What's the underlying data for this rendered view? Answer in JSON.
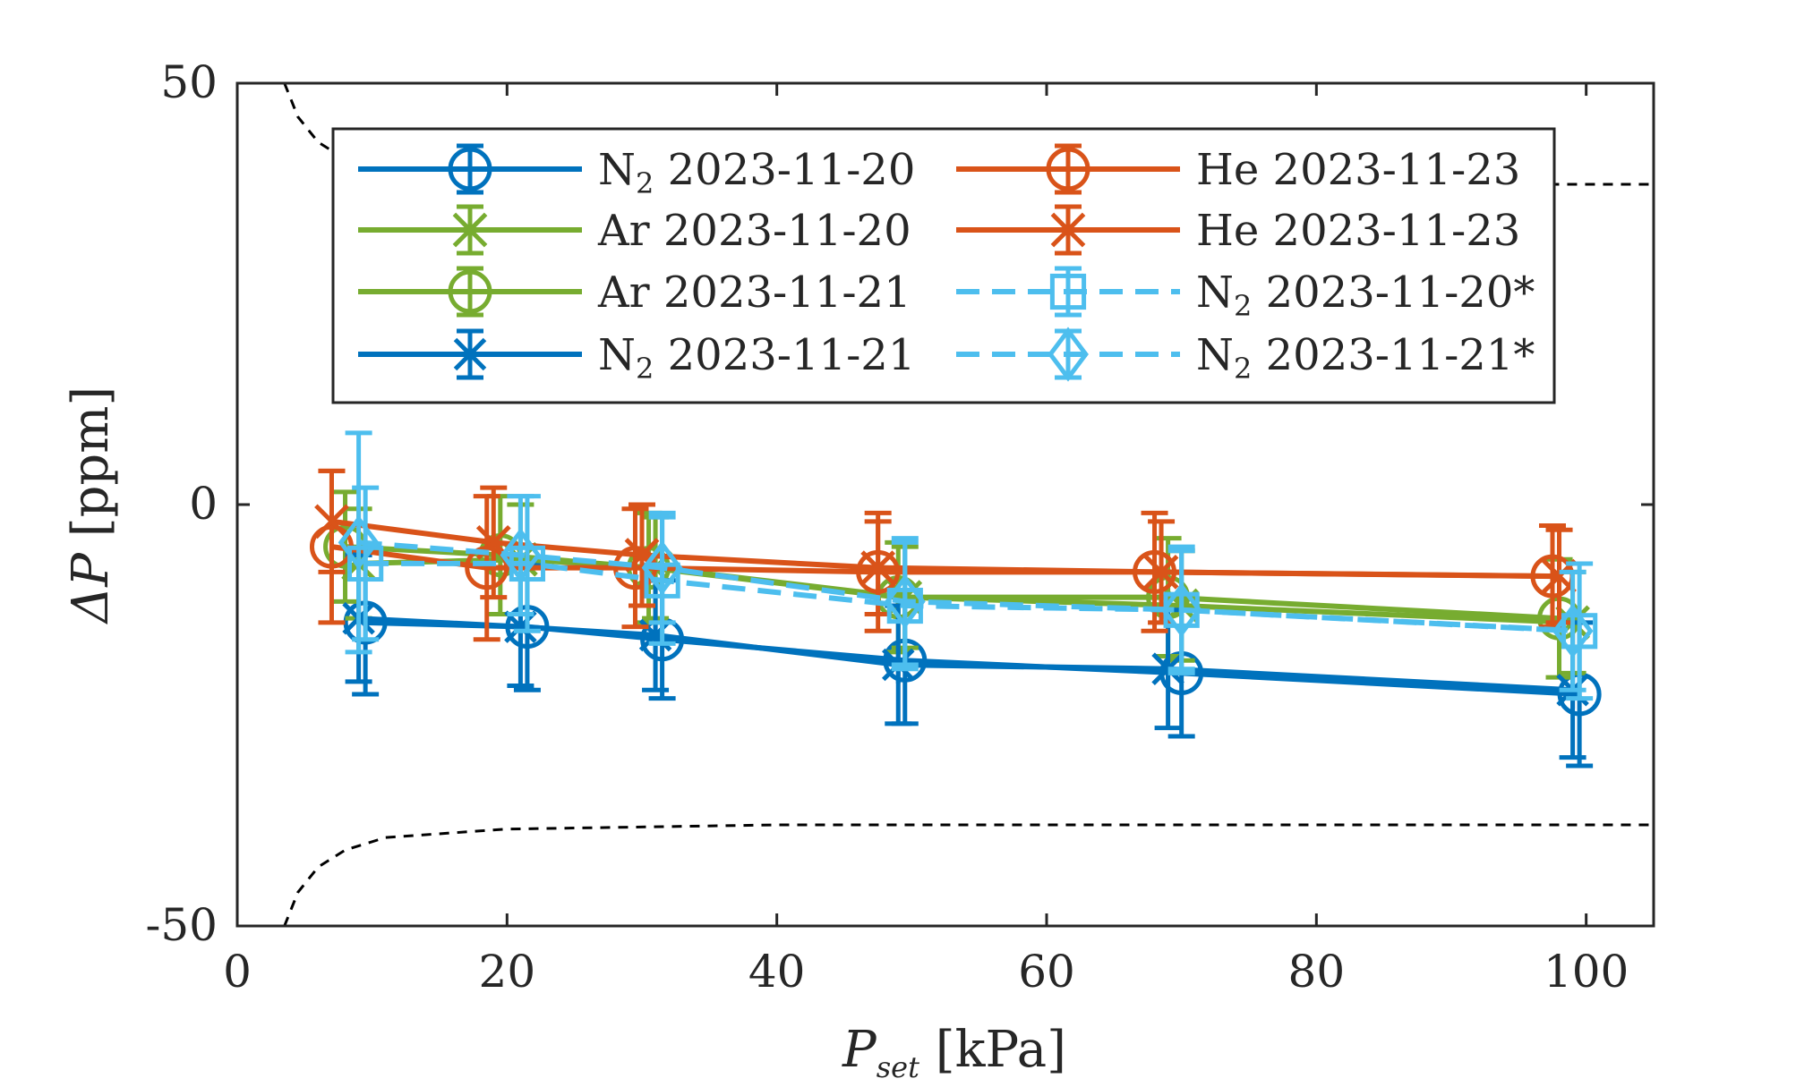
{
  "chart_data": {
    "type": "line",
    "title": "",
    "xlabel": {
      "main": "P",
      "sub": "set",
      "unit": "[kPa]"
    },
    "ylabel": {
      "main": "ΔP",
      "unit": "[ppm]"
    },
    "xlim": [
      0,
      105
    ],
    "ylim": [
      -50,
      50
    ],
    "xticks": [
      0,
      20,
      40,
      60,
      80,
      100
    ],
    "yticks": [
      -50,
      0,
      50
    ],
    "grid": false,
    "legend": {
      "placement": "top",
      "columns": 2
    },
    "colors": {
      "blue": "#0072BD",
      "green": "#77AC30",
      "orange": "#D95319",
      "lightblue": "#4DBEEE",
      "bound": "#000000"
    },
    "series": [
      {
        "name_base": "N",
        "name_sub": "2",
        "name_rest": " 2023-11-20",
        "color": "blue",
        "marker": "circle",
        "dash": "solid",
        "x": [
          9.5,
          21.5,
          31.5,
          49.5,
          70,
          99.5
        ],
        "y": [
          -14,
          -14.5,
          -16,
          -18.5,
          -20,
          -22.5
        ],
        "err": [
          8.5,
          7.5,
          7,
          7.5,
          7.5,
          8.5
        ]
      },
      {
        "name_base": "Ar",
        "name_sub": "",
        "name_rest": " 2023-11-20",
        "color": "green",
        "marker": "x",
        "dash": "solid",
        "x": [
          9,
          21,
          31,
          49.5,
          70,
          99
        ],
        "y": [
          -7,
          -6.5,
          -7.5,
          -11,
          -12,
          -14
        ],
        "err": [
          6.5,
          6.5,
          6,
          6,
          6.5,
          6
        ]
      },
      {
        "name_base": "Ar",
        "name_sub": "",
        "name_rest": " 2023-11-21",
        "color": "green",
        "marker": "circle",
        "dash": "solid",
        "x": [
          8,
          19.5,
          30.5,
          49,
          69,
          98
        ],
        "y": [
          -5,
          -6,
          -7.5,
          -11,
          -11,
          -13.5
        ],
        "err": [
          6.5,
          7,
          6.5,
          6.5,
          7,
          7
        ]
      },
      {
        "name_base": "N",
        "name_sub": "2",
        "name_rest": " 2023-11-21",
        "color": "blue",
        "marker": "star",
        "dash": "solid",
        "x": [
          9,
          21,
          31,
          49,
          69,
          99
        ],
        "y": [
          -13.5,
          -14.5,
          -15.5,
          -19,
          -19.5,
          -22
        ],
        "err": [
          7.5,
          7,
          6.5,
          7,
          7,
          8
        ]
      },
      {
        "name_base": "He",
        "name_sub": "",
        "name_rest": " 2023-11-23",
        "color": "orange",
        "marker": "circle",
        "dash": "solid",
        "x": [
          7,
          18.5,
          29.5,
          47.5,
          68,
          97.5
        ],
        "y": [
          -5,
          -7.5,
          -7.5,
          -8,
          -8,
          -8.5
        ],
        "err": [
          9,
          8.5,
          7,
          7,
          7,
          6
        ]
      },
      {
        "name_base": "He",
        "name_sub": "",
        "name_rest": " 2023-11-23",
        "color": "orange",
        "marker": "x",
        "dash": "solid",
        "x": [
          7,
          19,
          30,
          47.5,
          68.5,
          98
        ],
        "y": [
          -2,
          -4.5,
          -6,
          -7.5,
          -8,
          -8.5
        ],
        "err": [
          6,
          6.5,
          6,
          5.5,
          6,
          5.5
        ]
      },
      {
        "name_base": "N",
        "name_sub": "2",
        "name_rest": " 2023-11-20*",
        "color": "lightblue",
        "marker": "square",
        "dash": "dash",
        "x": [
          9.5,
          21.5,
          31.5,
          49.5,
          70,
          99.5
        ],
        "y": [
          -7,
          -7,
          -9,
          -12,
          -12.5,
          -15
        ],
        "err": [
          9,
          8,
          7.5,
          7.5,
          7.5,
          8
        ]
      },
      {
        "name_base": "N",
        "name_sub": "2",
        "name_rest": " 2023-11-21*",
        "color": "lightblue",
        "marker": "diamond",
        "dash": "dash",
        "x": [
          9,
          21,
          31.5,
          49.5,
          70,
          99
        ],
        "y": [
          -4.5,
          -6,
          -7.5,
          -11.5,
          -12.5,
          -15
        ],
        "err": [
          13,
          7,
          6.5,
          7.5,
          7,
          7
        ]
      }
    ],
    "bounds": [
      {
        "name": "upper-bound",
        "x": [
          3,
          3.5,
          4.5,
          6,
          8,
          11,
          20,
          40,
          60,
          80,
          105
        ],
        "y": [
          52,
          50,
          46,
          43,
          41,
          39.5,
          38.5,
          38,
          38,
          38,
          38
        ]
      },
      {
        "name": "lower-bound",
        "x": [
          3,
          3.5,
          4.5,
          6,
          8,
          11,
          20,
          40,
          60,
          80,
          105
        ],
        "y": [
          -52,
          -50,
          -46,
          -43,
          -41,
          -39.5,
          -38.5,
          -38,
          -38,
          -38,
          -38
        ]
      }
    ]
  }
}
